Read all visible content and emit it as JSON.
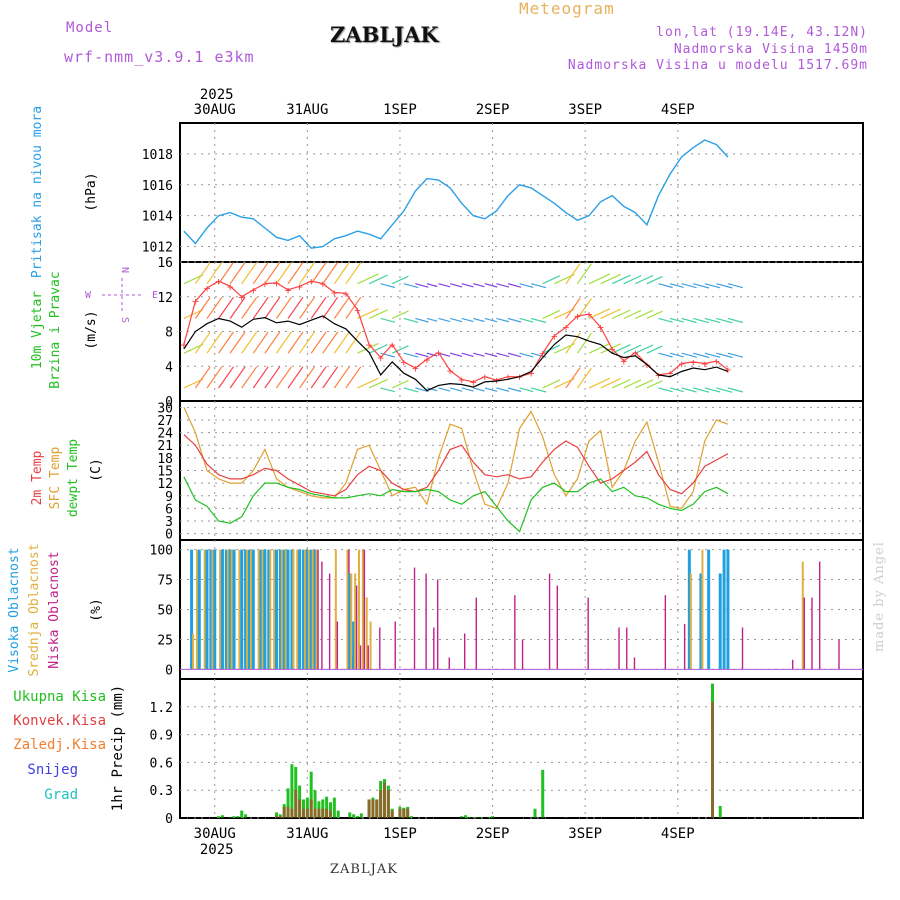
{
  "header": {
    "model_label": "Model",
    "model_name": "wrf-nmm_v3.9.1  e3km",
    "station": "ZABLJAK",
    "title": "Meteogram",
    "lonlat": "lon,lat (19.14E, 43.12N)",
    "elevation": "Nadmorska Visina 1450m",
    "model_elevation": "Nadmorska Visina u modelu 1517.69m"
  },
  "footer": {
    "station": "ZABLJAK",
    "watermark": "made by Angel"
  },
  "time_axis": {
    "year": "2025",
    "days": [
      "30AUG",
      "31AUG",
      "1SEP",
      "2SEP",
      "3SEP",
      "4SEP"
    ]
  },
  "colors": {
    "pressure": "#2aa0e6",
    "temp2m": "#e84040",
    "sfc": "#e0a030",
    "dew": "#20c020",
    "high_cloud": "#20a0e0",
    "mid_cloud": "#e0b040",
    "low_cloud": "#c0208a",
    "total_precip": "#20c020",
    "conv_precip": "#e04040",
    "frozen": "#f08030",
    "snow": "#4040e0",
    "graupel": "#20c0c0",
    "wind_max": "#ff4040",
    "wind_mean": "#000000"
  },
  "chart_data": [
    {
      "type": "line",
      "panel": "pressure",
      "ylabel_left": "Pritisak na nivou mora",
      "unit": "(hPa)",
      "ylim": [
        1011,
        1020
      ],
      "yticks": [
        1012,
        1014,
        1016,
        1018
      ],
      "step_hours": 3,
      "values": [
        1013.0,
        1012.2,
        1013.2,
        1014.0,
        1014.2,
        1013.9,
        1013.8,
        1013.2,
        1012.6,
        1012.4,
        1012.7,
        1011.9,
        1012.0,
        1012.5,
        1012.7,
        1013.0,
        1012.8,
        1012.5,
        1013.4,
        1014.3,
        1015.6,
        1016.4,
        1016.3,
        1015.8,
        1014.8,
        1014.0,
        1013.8,
        1014.3,
        1015.3,
        1016.0,
        1015.8,
        1015.3,
        1014.8,
        1014.2,
        1013.7,
        1014.0,
        1014.9,
        1015.3,
        1014.6,
        1014.2,
        1013.4,
        1015.3,
        1016.7,
        1017.8,
        1018.4,
        1018.9,
        1018.6,
        1017.8
      ]
    },
    {
      "type": "line",
      "panel": "wind",
      "ylabel_left": "10m Vjetar",
      "ylabel_left2": "Brzina i Pravac",
      "unit": "(m/s)",
      "compass": {
        "n": "N",
        "s": "S",
        "e": "E",
        "w": "W"
      },
      "ylim": [
        0,
        16
      ],
      "yticks": [
        0,
        4,
        8,
        12,
        16
      ],
      "step_hours": 3,
      "series": [
        {
          "name": "max_gust",
          "values": [
            6.5,
            11.5,
            13.0,
            13.8,
            13.2,
            12.0,
            12.8,
            13.5,
            13.6,
            12.8,
            13.2,
            13.8,
            13.5,
            12.5,
            12.4,
            10.5,
            6.5,
            5.0,
            6.5,
            4.5,
            3.8,
            4.8,
            5.6,
            3.5,
            2.5,
            2.2,
            2.8,
            2.4,
            2.8,
            2.8,
            3.2,
            5.5,
            7.5,
            8.5,
            9.8,
            10.0,
            8.5,
            6.0,
            4.6,
            5.6,
            4.2,
            3.0,
            3.2,
            4.3,
            4.5,
            4.3,
            4.6,
            3.6
          ]
        },
        {
          "name": "mean",
          "values": [
            6.0,
            8.0,
            8.9,
            9.5,
            9.2,
            8.5,
            9.4,
            9.6,
            9.0,
            9.2,
            8.8,
            9.3,
            9.8,
            8.9,
            8.3,
            6.9,
            5.6,
            3.0,
            4.5,
            3.2,
            2.5,
            1.2,
            1.8,
            2.0,
            1.9,
            1.6,
            2.2,
            2.3,
            2.5,
            2.8,
            3.4,
            5.0,
            6.5,
            7.6,
            7.4,
            6.9,
            6.5,
            5.5,
            5.0,
            5.2,
            4.2,
            3.0,
            2.8,
            3.4,
            3.8,
            3.6,
            3.9,
            3.4
          ]
        }
      ]
    },
    {
      "type": "line",
      "panel": "temperature",
      "ylabel_left": "2m Temp",
      "ylabel_left2": "SFC Temp",
      "ylabel_left3": "dewpt Temp",
      "unit": "(C)",
      "ylim": [
        -1.5,
        31.5
      ],
      "yticks": [
        0,
        3,
        6,
        9,
        12,
        15,
        18,
        21,
        24,
        27,
        30
      ],
      "step_hours": 3,
      "series": [
        {
          "name": "2m Temp",
          "values": [
            23.5,
            21.0,
            16.5,
            14.0,
            13.0,
            13.0,
            14.0,
            15.5,
            15.0,
            13.0,
            11.5,
            10.0,
            9.5,
            9.0,
            10.5,
            14.0,
            16.0,
            15.0,
            12.0,
            10.5,
            10.0,
            11.0,
            15.0,
            20.0,
            21.0,
            17.0,
            14.0,
            13.5,
            14.0,
            13.0,
            13.5,
            17.0,
            20.0,
            22.0,
            20.5,
            16.0,
            12.0,
            13.0,
            15.0,
            17.0,
            19.5,
            14.0,
            10.5,
            9.5,
            12.0,
            16.0,
            17.5,
            19.0
          ]
        },
        {
          "name": "SFC Temp",
          "values": [
            30.0,
            24.0,
            15.0,
            13.0,
            12.0,
            12.0,
            15.0,
            20.0,
            13.0,
            11.0,
            10.0,
            9.0,
            8.5,
            8.5,
            12.0,
            20.0,
            21.0,
            15.0,
            9.0,
            10.5,
            11.0,
            7.0,
            18.0,
            26.0,
            25.0,
            15.0,
            7.0,
            6.0,
            12.0,
            25.0,
            29.0,
            23.0,
            14.0,
            9.0,
            13.0,
            22.0,
            24.5,
            11.0,
            15.0,
            22.0,
            26.5,
            17.0,
            6.5,
            6.0,
            10.0,
            22.0,
            27.0,
            26.0
          ]
        },
        {
          "name": "dewpt Temp",
          "values": [
            13.5,
            8.0,
            6.5,
            3.0,
            2.5,
            4.0,
            9.0,
            12.0,
            12.0,
            11.0,
            10.5,
            9.5,
            9.0,
            8.5,
            8.5,
            9.0,
            9.5,
            9.0,
            10.5,
            10.0,
            10.0,
            10.5,
            10.0,
            8.0,
            7.0,
            9.0,
            10.0,
            6.5,
            3.0,
            0.5,
            8.0,
            11.0,
            12.0,
            10.0,
            10.0,
            12.0,
            13.0,
            10.0,
            11.0,
            9.0,
            8.5,
            7.0,
            6.0,
            5.5,
            7.0,
            10.0,
            11.0,
            9.5
          ]
        }
      ]
    },
    {
      "type": "bar",
      "panel": "cloud",
      "ylabel_left": "Visoka Oblacnost",
      "ylabel_left2": "Srednja Oblacnost",
      "ylabel_left3": "Niska Oblacnost",
      "unit": "(%)",
      "ylim": [
        -8,
        108
      ],
      "yticks": [
        0,
        25,
        50,
        75,
        100
      ],
      "hour_offsets": [
        3,
        4,
        5,
        6,
        7,
        8,
        9,
        10,
        11,
        12,
        13,
        14,
        15,
        16,
        17,
        18,
        19,
        20,
        21,
        22,
        23,
        24,
        25,
        26,
        27,
        28,
        29,
        30,
        31,
        32,
        33,
        34,
        35,
        36,
        38,
        40,
        43,
        44,
        45,
        46,
        47,
        48,
        49,
        51,
        55,
        60,
        63,
        65,
        66,
        69,
        73,
        76,
        86,
        88,
        95,
        97,
        105,
        113,
        115,
        117,
        125,
        130,
        132,
        135,
        137,
        140,
        141,
        142,
        145,
        158,
        161,
        163,
        165,
        170
      ],
      "series": [
        {
          "name": "Visoka Oblacnost",
          "values": [
            100,
            0,
            100,
            0,
            100,
            100,
            100,
            0,
            100,
            100,
            100,
            100,
            0,
            100,
            100,
            100,
            100,
            0,
            100,
            100,
            100,
            0,
            100,
            100,
            100,
            100,
            100,
            0,
            100,
            100,
            100,
            100,
            100,
            0,
            0,
            0,
            0,
            80,
            40,
            0,
            0,
            0,
            0,
            0,
            0,
            0,
            0,
            0,
            0,
            0,
            0,
            0,
            0,
            0,
            0,
            0,
            0,
            0,
            0,
            0,
            0,
            0,
            100,
            80,
            100,
            80,
            100,
            100,
            0,
            0,
            0,
            0,
            0,
            0
          ]
        },
        {
          "name": "Srednja Oblacnost",
          "values": [
            30,
            100,
            0,
            100,
            0,
            100,
            0,
            100,
            0,
            100,
            100,
            0,
            100,
            0,
            100,
            100,
            0,
            100,
            100,
            0,
            100,
            100,
            0,
            100,
            100,
            0,
            100,
            100,
            0,
            100,
            100,
            100,
            100,
            0,
            0,
            100,
            100,
            80,
            80,
            100,
            100,
            60,
            40,
            0,
            0,
            0,
            0,
            0,
            0,
            0,
            0,
            0,
            0,
            0,
            0,
            0,
            0,
            0,
            0,
            0,
            0,
            0,
            80,
            100,
            0,
            0,
            0,
            0,
            0,
            0,
            90,
            0,
            0,
            0
          ]
        },
        {
          "name": "Niska Oblacnost",
          "values": [
            0,
            0,
            0,
            0,
            0,
            0,
            0,
            0,
            0,
            0,
            0,
            0,
            0,
            0,
            0,
            0,
            0,
            0,
            0,
            0,
            0,
            0,
            0,
            0,
            0,
            0,
            0,
            0,
            0,
            0,
            0,
            0,
            100,
            90,
            80,
            40,
            100,
            10,
            70,
            20,
            100,
            20,
            0,
            35,
            40,
            85,
            80,
            35,
            75,
            10,
            30,
            60,
            62,
            25,
            80,
            70,
            60,
            35,
            35,
            10,
            62,
            38,
            0,
            0,
            0,
            0,
            0,
            0,
            35,
            8,
            60,
            60,
            90,
            25
          ]
        }
      ]
    },
    {
      "type": "bar",
      "panel": "precip",
      "legend": [
        "Ukupna Kisa",
        "Konvek.Kisa",
        "Zaledj.Kisa",
        "Snijeg",
        "Grad"
      ],
      "unit": "1hr Precip (mm)",
      "ylim": [
        0,
        1.5
      ],
      "yticks": [
        0,
        0.3,
        0.6,
        0.9,
        1.2
      ],
      "hour_offsets": [
        10,
        11,
        13,
        14,
        15,
        16,
        17,
        25,
        26,
        27,
        28,
        29,
        30,
        31,
        32,
        33,
        34,
        35,
        36,
        37,
        38,
        39,
        40,
        41,
        44,
        45,
        46,
        47,
        48,
        49,
        50,
        51,
        52,
        53,
        54,
        55,
        57,
        58,
        59,
        60,
        73,
        74,
        75,
        76,
        77,
        78,
        80,
        81,
        92,
        94,
        100,
        138,
        140
      ],
      "series": [
        {
          "name": "Ukupna Kisa",
          "values": [
            0.02,
            0.03,
            0.01,
            0.02,
            0.02,
            0.08,
            0.04,
            0.06,
            0.04,
            0.15,
            0.32,
            0.58,
            0.55,
            0.35,
            0.2,
            0.22,
            0.5,
            0.3,
            0.18,
            0.2,
            0.23,
            0.17,
            0.22,
            0.08,
            0.06,
            0.04,
            0.02,
            0.05,
            0.0,
            0.2,
            0.22,
            0.2,
            0.4,
            0.42,
            0.35,
            0.1,
            0.12,
            0.11,
            0.12,
            0.02,
            0.02,
            0.03,
            0.01,
            0.01,
            0.01,
            0.01,
            0.01,
            0.02,
            0.1,
            0.52,
            0.01,
            1.45,
            0.13
          ]
        },
        {
          "name": "Konvek.Kisa",
          "values": [
            0.0,
            0.0,
            0.0,
            0.0,
            0.0,
            0.0,
            0.0,
            0.02,
            0.02,
            0.12,
            0.12,
            0.1,
            0.3,
            0.2,
            0.1,
            0.1,
            0.2,
            0.1,
            0.1,
            0.1,
            0.1,
            0.08,
            0.0,
            0.0,
            0.0,
            0.0,
            0.0,
            0.0,
            0.0,
            0.2,
            0.2,
            0.2,
            0.3,
            0.38,
            0.3,
            0.08,
            0.1,
            0.1,
            0.1,
            0.0,
            0.0,
            0.0,
            0.0,
            0.0,
            0.0,
            0.0,
            0.0,
            0.0,
            0.0,
            0.0,
            0.0,
            1.25,
            0.0
          ]
        }
      ]
    }
  ]
}
